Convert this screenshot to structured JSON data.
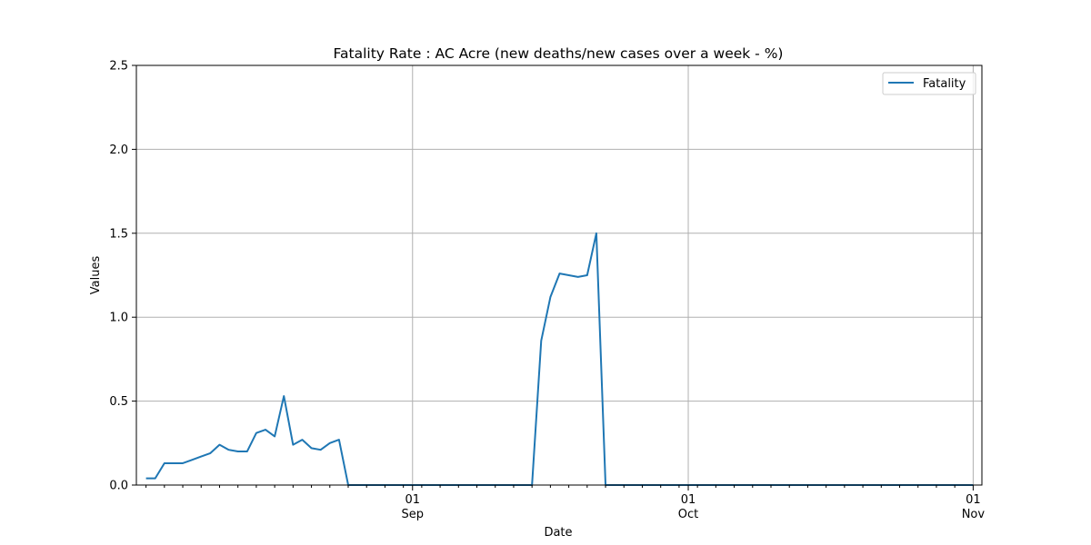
{
  "chart_data": {
    "type": "line",
    "title": "Fatality Rate : AC Acre (new deaths/new cases over a week - %)",
    "xlabel": "Date",
    "ylabel": "Values",
    "xlim": [
      "2020-08-02",
      "2020-11-01"
    ],
    "ylim": [
      0,
      2.5
    ],
    "yticks": [
      0.0,
      0.5,
      1.0,
      1.5,
      2.0,
      2.5
    ],
    "yticklabels": [
      "0.0",
      "0.5",
      "1.0",
      "1.5",
      "2.0",
      "2.5"
    ],
    "xticks_major": [
      {
        "date": "2020-09-01",
        "day": "01",
        "month": "Sep"
      },
      {
        "date": "2020-10-01",
        "day": "01",
        "month": "Oct"
      },
      {
        "date": "2020-11-01",
        "day": "01",
        "month": "Nov"
      }
    ],
    "grid": true,
    "legend_position": "top-right",
    "series": [
      {
        "name": "Fatality",
        "color": "#1f77b4",
        "x": [
          "2020-08-03",
          "2020-08-04",
          "2020-08-05",
          "2020-08-06",
          "2020-08-07",
          "2020-08-08",
          "2020-08-09",
          "2020-08-10",
          "2020-08-11",
          "2020-08-12",
          "2020-08-13",
          "2020-08-14",
          "2020-08-15",
          "2020-08-16",
          "2020-08-17",
          "2020-08-18",
          "2020-08-19",
          "2020-08-20",
          "2020-08-21",
          "2020-08-22",
          "2020-08-23",
          "2020-08-24",
          "2020-08-25",
          "2020-08-26",
          "2020-08-27",
          "2020-08-28",
          "2020-08-29",
          "2020-08-30",
          "2020-08-31",
          "2020-09-01",
          "2020-09-02",
          "2020-09-03",
          "2020-09-04",
          "2020-09-05",
          "2020-09-06",
          "2020-09-07",
          "2020-09-08",
          "2020-09-09",
          "2020-09-10",
          "2020-09-11",
          "2020-09-12",
          "2020-09-13",
          "2020-09-14",
          "2020-09-15",
          "2020-09-16",
          "2020-09-17",
          "2020-09-18",
          "2020-09-19",
          "2020-09-20",
          "2020-09-21",
          "2020-09-22",
          "2020-09-23",
          "2020-09-24",
          "2020-09-25",
          "2020-09-26",
          "2020-09-27",
          "2020-09-28",
          "2020-09-29",
          "2020-09-30",
          "2020-10-01",
          "2020-10-02",
          "2020-10-03",
          "2020-10-04",
          "2020-10-05",
          "2020-10-06",
          "2020-10-07",
          "2020-10-08",
          "2020-10-09",
          "2020-10-10",
          "2020-10-11",
          "2020-10-12",
          "2020-10-13",
          "2020-10-14",
          "2020-10-15",
          "2020-10-16",
          "2020-10-17",
          "2020-10-18",
          "2020-10-19",
          "2020-10-20",
          "2020-10-21",
          "2020-10-22",
          "2020-10-23",
          "2020-10-24",
          "2020-10-25",
          "2020-10-26",
          "2020-10-27",
          "2020-10-28",
          "2020-10-29",
          "2020-10-30",
          "2020-10-31",
          "2020-11-01"
        ],
        "values": [
          0.04,
          0.04,
          0.13,
          0.13,
          0.13,
          0.15,
          0.17,
          0.19,
          0.24,
          0.21,
          0.2,
          0.2,
          0.31,
          0.33,
          0.29,
          0.53,
          0.24,
          0.27,
          0.22,
          0.21,
          0.25,
          0.27,
          0.0,
          0.0,
          0.0,
          0.0,
          0.0,
          0.0,
          0.0,
          0.0,
          0.0,
          0.0,
          0.0,
          0.0,
          0.0,
          0.0,
          0.0,
          0.0,
          0.0,
          0.0,
          0.0,
          0.0,
          0.0,
          0.86,
          1.12,
          1.26,
          1.25,
          1.24,
          1.25,
          1.5,
          0.0,
          0.0,
          0.0,
          0.0,
          0.0,
          0.0,
          0.0,
          0.0,
          0.0,
          0.0,
          0.0,
          0.0,
          0.0,
          0.0,
          0.0,
          0.0,
          0.0,
          0.0,
          0.0,
          0.0,
          0.0,
          0.0,
          0.0,
          0.0,
          0.0,
          0.0,
          0.0,
          0.0,
          0.0,
          0.0,
          0.0,
          0.0,
          0.0,
          0.0,
          0.0,
          0.0,
          0.0,
          0.0,
          0.0,
          0.0,
          0.0
        ]
      }
    ]
  }
}
